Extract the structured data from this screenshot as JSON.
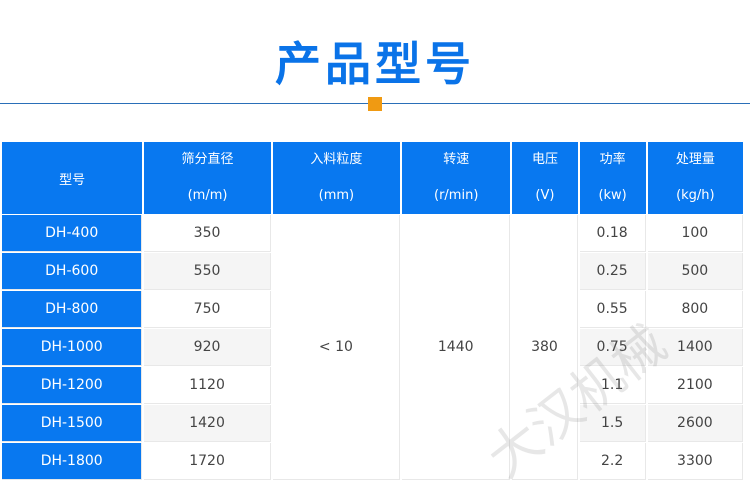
{
  "title": "产品型号",
  "accent_color": "#0878f0",
  "headers": [
    {
      "name": "型号",
      "unit": ""
    },
    {
      "name": "筛分直径",
      "unit": "(m/m)"
    },
    {
      "name": "入料粒度",
      "unit": "(mm)"
    },
    {
      "name": "转速",
      "unit": "(r/min)"
    },
    {
      "name": "电压",
      "unit": "(V)"
    },
    {
      "name": "功率",
      "unit": "(kw)"
    },
    {
      "name": "处理量",
      "unit": "(kg/h)"
    }
  ],
  "shared": {
    "feed_size": "< 10",
    "speed": "1440",
    "voltage": "380"
  },
  "rows": [
    {
      "model": "DH-400",
      "diameter": "350",
      "power": "0.18",
      "capacity": "100"
    },
    {
      "model": "DH-600",
      "diameter": "550",
      "power": "0.25",
      "capacity": "500"
    },
    {
      "model": "DH-800",
      "diameter": "750",
      "power": "0.55",
      "capacity": "800"
    },
    {
      "model": "DH-1000",
      "diameter": "920",
      "power": "0.75",
      "capacity": "1400"
    },
    {
      "model": "DH-1200",
      "diameter": "1120",
      "power": "1.1",
      "capacity": "2100"
    },
    {
      "model": "DH-1500",
      "diameter": "1420",
      "power": "1.5",
      "capacity": "2600"
    },
    {
      "model": "DH-1800",
      "diameter": "1720",
      "power": "2.2",
      "capacity": "3300"
    }
  ],
  "watermark": "大汉机械"
}
